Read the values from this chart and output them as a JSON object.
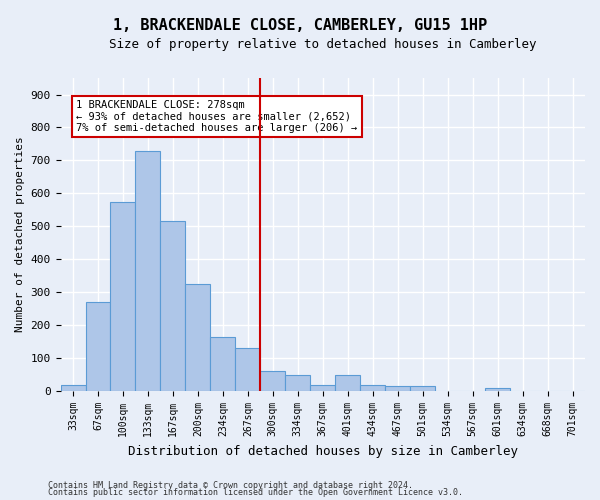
{
  "title": "1, BRACKENDALE CLOSE, CAMBERLEY, GU15 1HP",
  "subtitle": "Size of property relative to detached houses in Camberley",
  "xlabel": "Distribution of detached houses by size in Camberley",
  "ylabel": "Number of detached properties",
  "bar_color": "#aec6e8",
  "bar_edge_color": "#5b9bd5",
  "background_color": "#e8eef8",
  "grid_color": "#ffffff",
  "categories": [
    "33sqm",
    "67sqm",
    "100sqm",
    "133sqm",
    "167sqm",
    "200sqm",
    "234sqm",
    "267sqm",
    "300sqm",
    "334sqm",
    "367sqm",
    "401sqm",
    "434sqm",
    "467sqm",
    "501sqm",
    "534sqm",
    "567sqm",
    "601sqm",
    "634sqm",
    "668sqm",
    "701sqm"
  ],
  "values": [
    20,
    270,
    575,
    730,
    515,
    325,
    165,
    130,
    60,
    50,
    20,
    50,
    20,
    15,
    15,
    0,
    0,
    10,
    0,
    0,
    0
  ],
  "ylim": [
    0,
    950
  ],
  "yticks": [
    0,
    100,
    200,
    300,
    400,
    500,
    600,
    700,
    800,
    900
  ],
  "vline_x": 7.5,
  "vline_color": "#cc0000",
  "annotation_text": "1 BRACKENDALE CLOSE: 278sqm\n← 93% of detached houses are smaller (2,652)\n7% of semi-detached houses are larger (206) →",
  "annotation_box_color": "#ffffff",
  "annotation_box_edge": "#cc0000",
  "footnote1": "Contains HM Land Registry data © Crown copyright and database right 2024.",
  "footnote2": "Contains public sector information licensed under the Open Government Licence v3.0."
}
